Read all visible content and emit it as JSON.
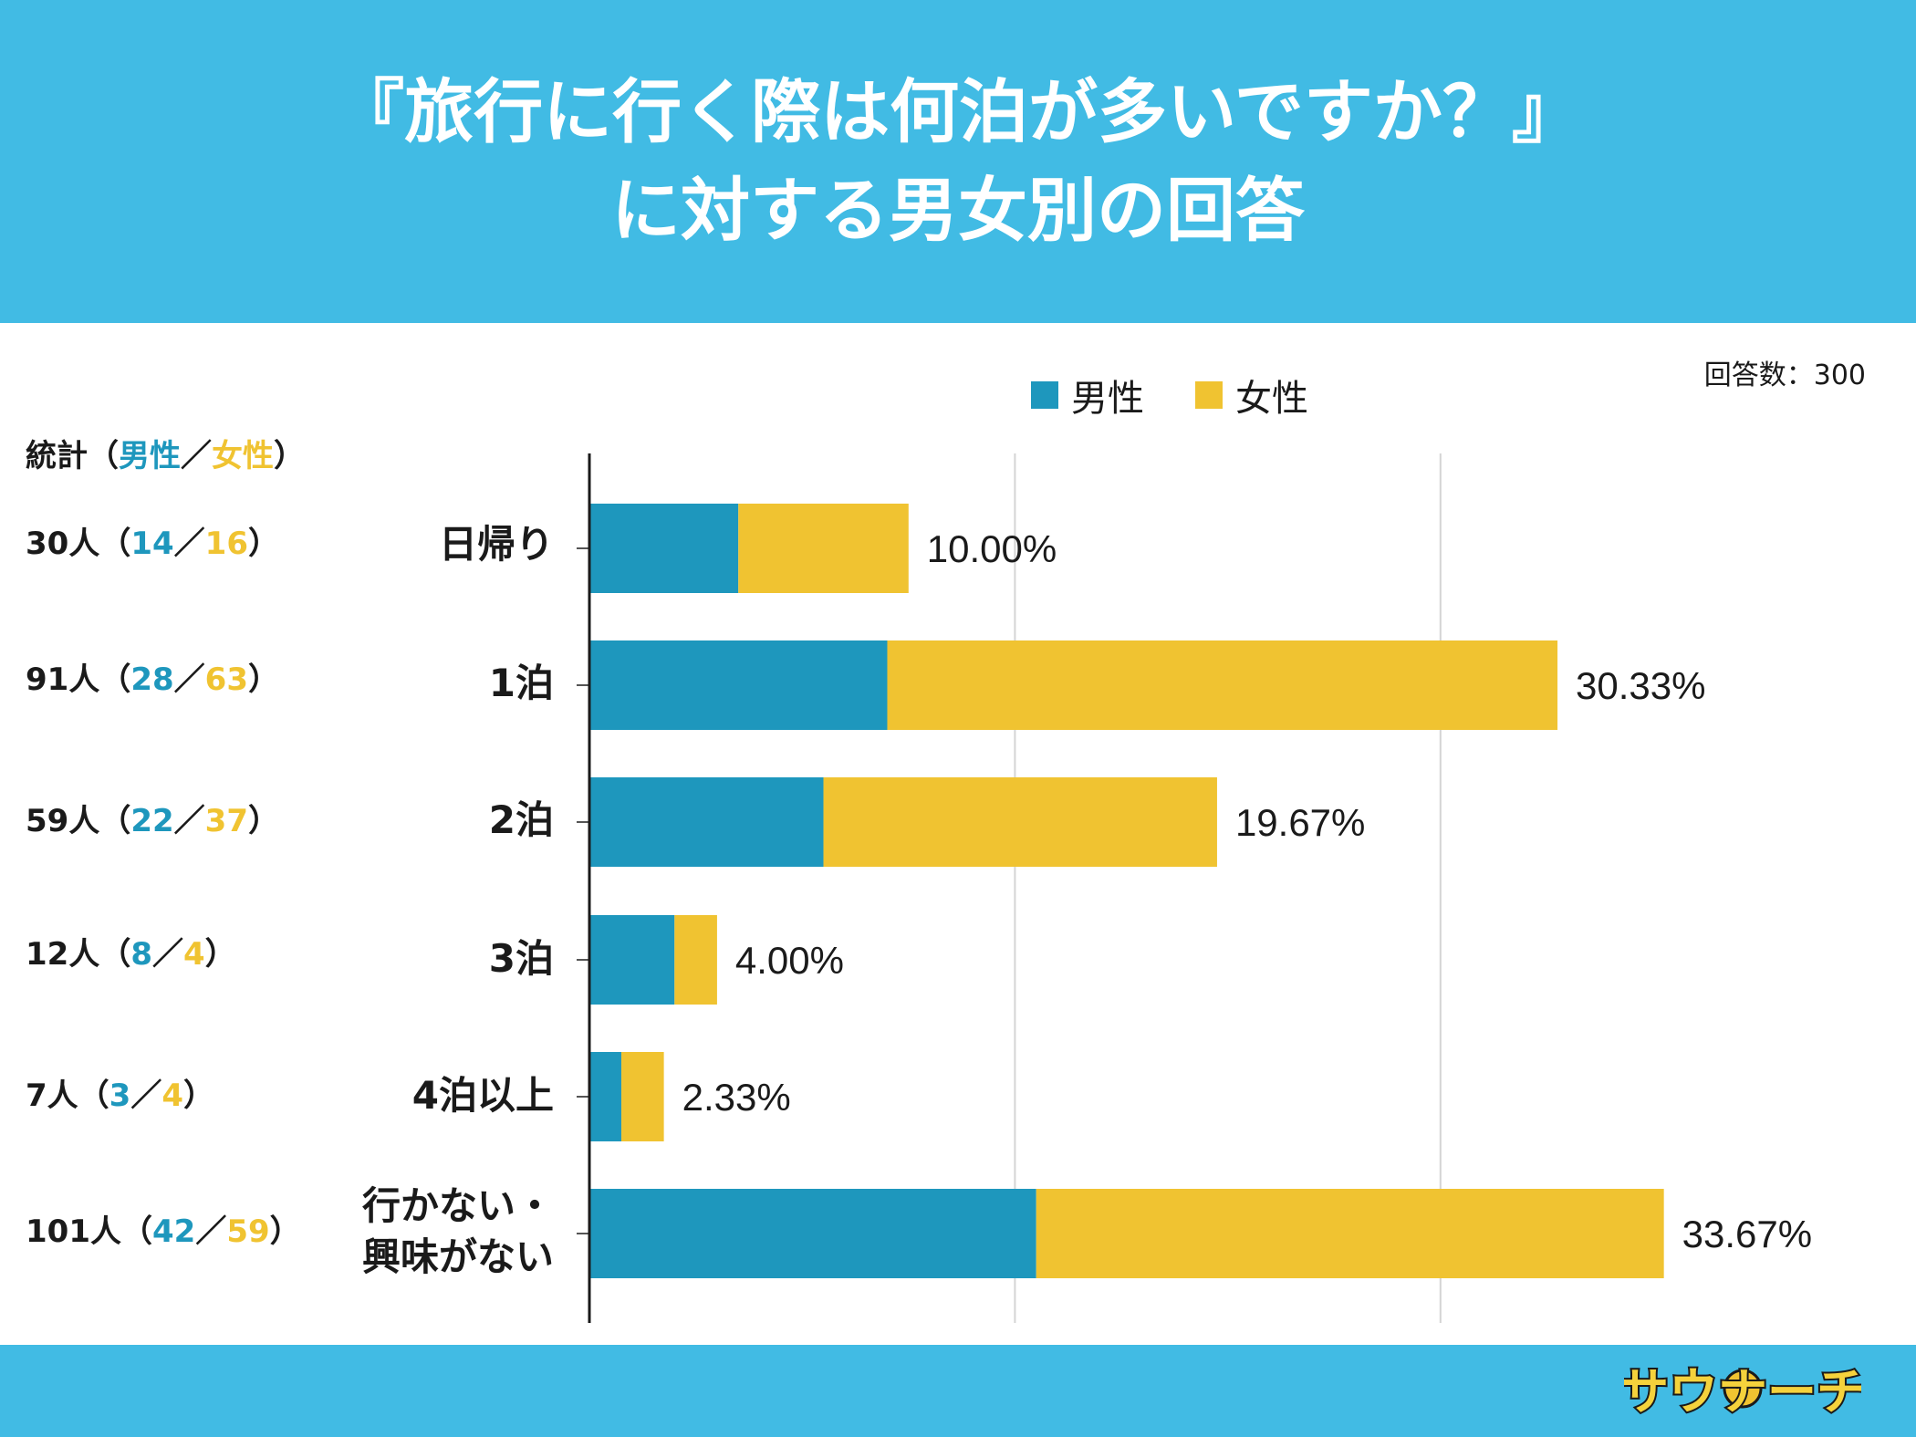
{
  "title": {
    "line1": "『旅行に行く際は何泊が多いですか？』",
    "line2": "に対する男女別の回答"
  },
  "respondents_label": "回答数：300",
  "legend": {
    "male": "男性",
    "female": "女性"
  },
  "stats": {
    "header_prefix": "統計（",
    "header_male": "男性",
    "header_sep": "／",
    "header_female": "女性",
    "header_suffix": "）",
    "rows": [
      {
        "total": "30人（",
        "male": "14",
        "sep": "／",
        "female": "16",
        "end": "）"
      },
      {
        "total": "91人（",
        "male": "28",
        "sep": "／",
        "female": "63",
        "end": "）"
      },
      {
        "total": "59人（",
        "male": "22",
        "sep": "／",
        "female": "37",
        "end": "）"
      },
      {
        "total": "12人（",
        "male": "8",
        "sep": "／",
        "female": "4",
        "end": "）"
      },
      {
        "total": "7人（",
        "male": "3",
        "sep": "／",
        "female": "4",
        "end": "）"
      },
      {
        "total": "101人（",
        "male": "42",
        "sep": "／",
        "female": "59",
        "end": "）"
      }
    ]
  },
  "chart_data": {
    "type": "bar",
    "orientation": "horizontal",
    "stacked": true,
    "categories": [
      "日帰り",
      "1泊",
      "2泊",
      "3泊",
      "4泊以上",
      "行かない・\n興味がない"
    ],
    "series": [
      {
        "name": "男性",
        "values": [
          14,
          28,
          22,
          8,
          3,
          42
        ],
        "color": "#1e97bd"
      },
      {
        "name": "女性",
        "values": [
          16,
          63,
          37,
          4,
          4,
          59
        ],
        "color": "#f0c331"
      }
    ],
    "data_labels": [
      "10.00%",
      "30.33%",
      "19.67%",
      "4.00%",
      "2.33%",
      "33.67%"
    ],
    "xlim": [
      0,
      120
    ],
    "grid": true,
    "legend_position": "top"
  },
  "logo_text": "サウナーチ",
  "colors": {
    "header": "#41bbe4",
    "male": "#1e97bd",
    "female": "#f0c331"
  }
}
